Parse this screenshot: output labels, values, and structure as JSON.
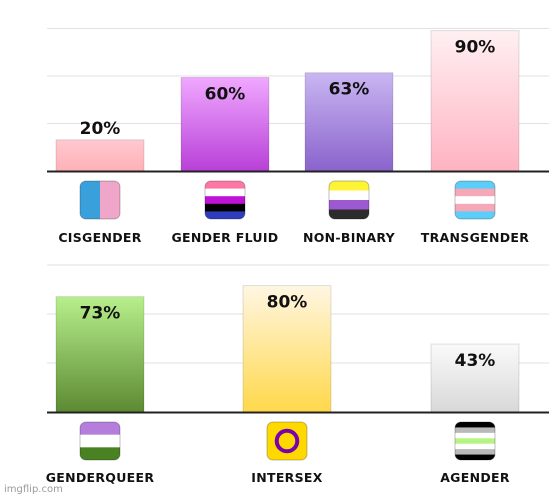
{
  "chart_data": [
    {
      "type": "bar",
      "title": "",
      "xlabel": "",
      "ylabel": "",
      "ylim": [
        0,
        100
      ],
      "grid": true,
      "categories": [
        "CISGENDER",
        "GENDER FLUID",
        "NON-BINARY",
        "TRANSGENDER"
      ],
      "values": [
        20,
        60,
        63,
        90
      ],
      "data_labels": [
        "20%",
        "60%",
        "63%",
        "90%"
      ],
      "bar_colors": [
        [
          "#ffc9cf",
          "#ffb0b8"
        ],
        [
          "#f0a8ff",
          "#b840d8"
        ],
        [
          "#c9b6f2",
          "#8a63cc"
        ],
        [
          "#fff0f2",
          "#ffb3c2"
        ]
      ],
      "icons": [
        "cisgender-flag-icon",
        "genderfluid-flag-icon",
        "nonbinary-flag-icon",
        "transgender-flag-icon"
      ]
    },
    {
      "type": "bar",
      "title": "",
      "xlabel": "",
      "ylabel": "",
      "ylim": [
        0,
        100
      ],
      "grid": true,
      "categories": [
        "GENDERQUEER",
        "INTERSEX",
        "AGENDER"
      ],
      "values": [
        73,
        80,
        43
      ],
      "data_labels": [
        "73%",
        "80%",
        "43%"
      ],
      "bar_colors": [
        [
          "#b8ef8c",
          "#5c8a33"
        ],
        [
          "#fff6e3",
          "#ffd84a"
        ],
        [
          "#fafafa",
          "#d8d8d8"
        ]
      ],
      "icons": [
        "genderqueer-flag-icon",
        "intersex-flag-icon",
        "agender-flag-icon"
      ]
    }
  ],
  "watermark": "imgflip.com"
}
